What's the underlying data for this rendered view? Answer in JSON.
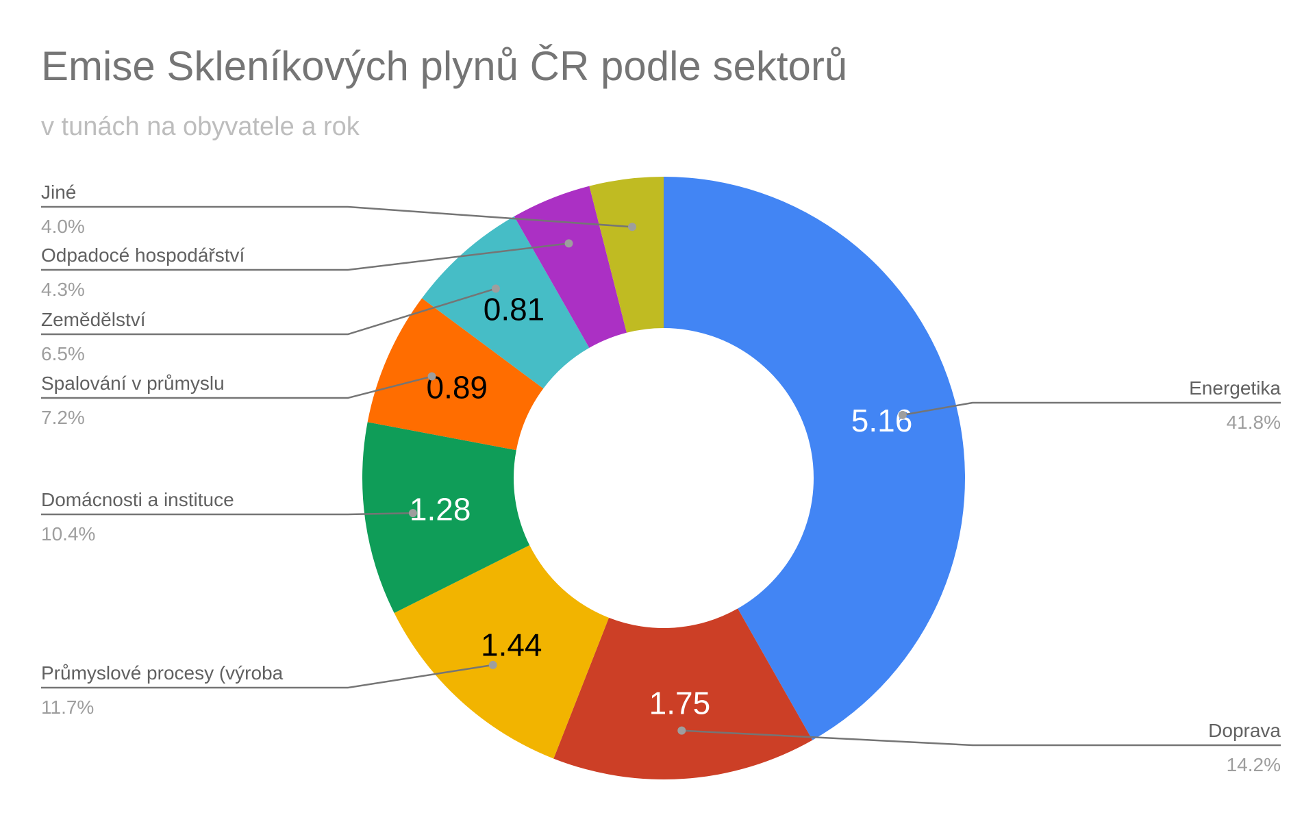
{
  "chart_data": {
    "type": "pie",
    "donut": true,
    "title": "Emise Skleníkových plynů ČR podle sektorů",
    "subtitle": "v tunách na obyvatele a rok",
    "slices": [
      {
        "label": "Energetika",
        "value": 5.16,
        "value_label": "5.16",
        "percent": "41.8%",
        "color": "#4285f4",
        "value_color": "#ffffff"
      },
      {
        "label": "Doprava",
        "value": 1.75,
        "value_label": "1.75",
        "percent": "14.2%",
        "color": "#cc3f26",
        "value_color": "#ffffff"
      },
      {
        "label": "Průmyslové procesy (výroba",
        "value": 1.44,
        "value_label": "1.44",
        "percent": "11.7%",
        "color": "#f2b400",
        "value_color": "#000000"
      },
      {
        "label": "Domácnosti a instituce",
        "value": 1.28,
        "value_label": "1.28",
        "percent": "10.4%",
        "color": "#0f9d58",
        "value_color": "#ffffff"
      },
      {
        "label": "Spalování v průmyslu",
        "value": 0.89,
        "value_label": "0.89",
        "percent": "7.2%",
        "color": "#ff6d00",
        "value_color": "#000000"
      },
      {
        "label": "Zemědělství",
        "value": 0.81,
        "value_label": "0.81",
        "percent": "6.5%",
        "color": "#46bdc6",
        "value_color": "#000000"
      },
      {
        "label": "Odpadocé hospodářství",
        "value": 0.53,
        "value_label": "",
        "percent": "4.3%",
        "color": "#ab30c4",
        "value_color": "#000000"
      },
      {
        "label": "Jiné",
        "value": 0.49,
        "value_label": "",
        "percent": "4.0%",
        "color": "#c0bb22",
        "value_color": "#000000"
      }
    ]
  }
}
